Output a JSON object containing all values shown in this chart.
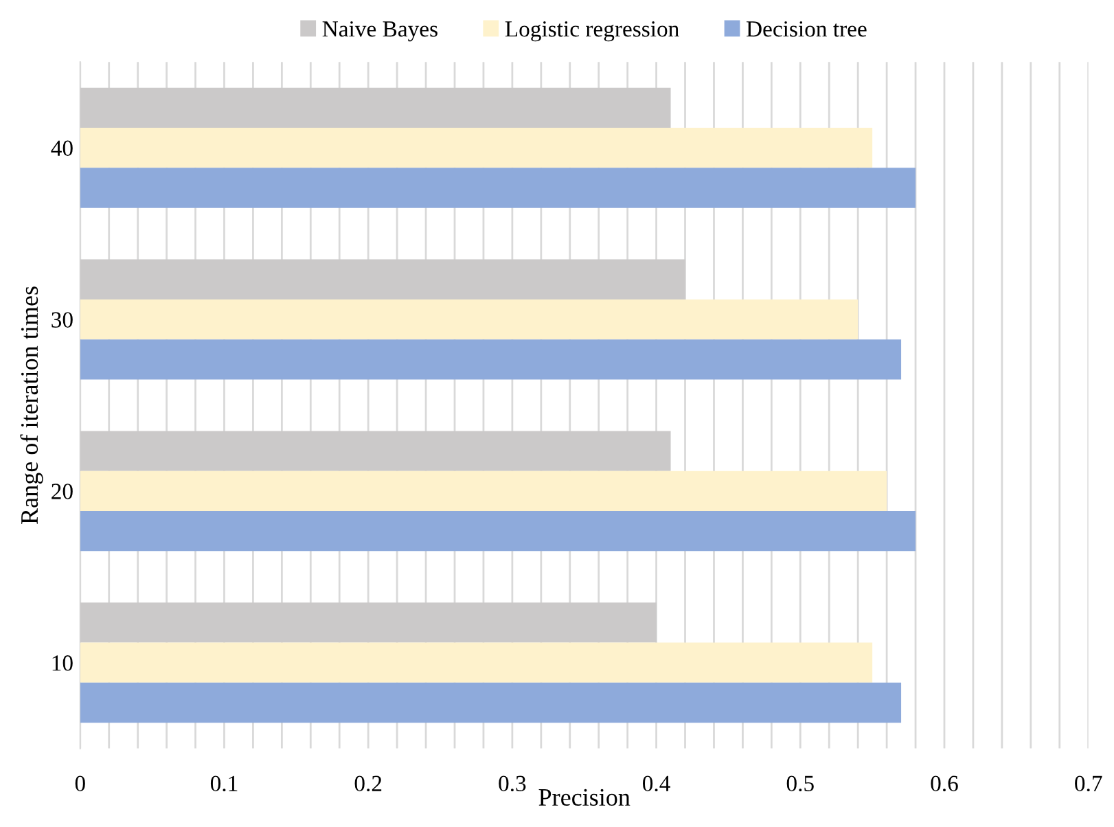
{
  "chart_data": {
    "type": "bar",
    "orientation": "horizontal",
    "xlabel": "Precision",
    "ylabel": "Range of iteration times",
    "categories": [
      "40",
      "30",
      "20",
      "10"
    ],
    "series": [
      {
        "name": "Naive Bayes",
        "color": "#cbc9c9",
        "values": [
          0.41,
          0.42,
          0.41,
          0.4
        ]
      },
      {
        "name": "Logistic regression",
        "color": "#fef2cc",
        "values": [
          0.55,
          0.54,
          0.56,
          0.55
        ]
      },
      {
        "name": "Decision tree",
        "color": "#8eaadb",
        "values": [
          0.58,
          0.57,
          0.58,
          0.57
        ]
      }
    ],
    "xlim": [
      0,
      0.7
    ],
    "xticks": [
      0,
      {
        "value": 0.02,
        "label": null
      },
      {
        "value": 0.04,
        "label": null
      },
      {
        "value": 0.06,
        "label": null
      },
      {
        "value": 0.08,
        "label": null
      },
      0.1,
      {
        "value": 0.12,
        "label": null
      },
      {
        "value": 0.14,
        "label": null
      },
      {
        "value": 0.16,
        "label": null
      },
      {
        "value": 0.18,
        "label": null
      },
      0.2,
      {
        "value": 0.22,
        "label": null
      },
      {
        "value": 0.24,
        "label": null
      },
      {
        "value": 0.26,
        "label": null
      },
      {
        "value": 0.28,
        "label": null
      },
      0.3,
      {
        "value": 0.32,
        "label": null
      },
      {
        "value": 0.34,
        "label": null
      },
      {
        "value": 0.36,
        "label": null
      },
      {
        "value": 0.38,
        "label": null
      },
      0.4,
      {
        "value": 0.42,
        "label": null
      },
      {
        "value": 0.44,
        "label": null
      },
      {
        "value": 0.46,
        "label": null
      },
      {
        "value": 0.48,
        "label": null
      },
      0.5,
      {
        "value": 0.52,
        "label": null
      },
      {
        "value": 0.54,
        "label": null
      },
      {
        "value": 0.56,
        "label": null
      },
      {
        "value": 0.58,
        "label": null
      },
      0.6,
      {
        "value": 0.62,
        "label": null
      },
      {
        "value": 0.64,
        "label": null
      },
      {
        "value": 0.66,
        "label": null
      },
      {
        "value": 0.68,
        "label": null
      },
      0.7
    ],
    "grid": "x",
    "legend": "top"
  }
}
